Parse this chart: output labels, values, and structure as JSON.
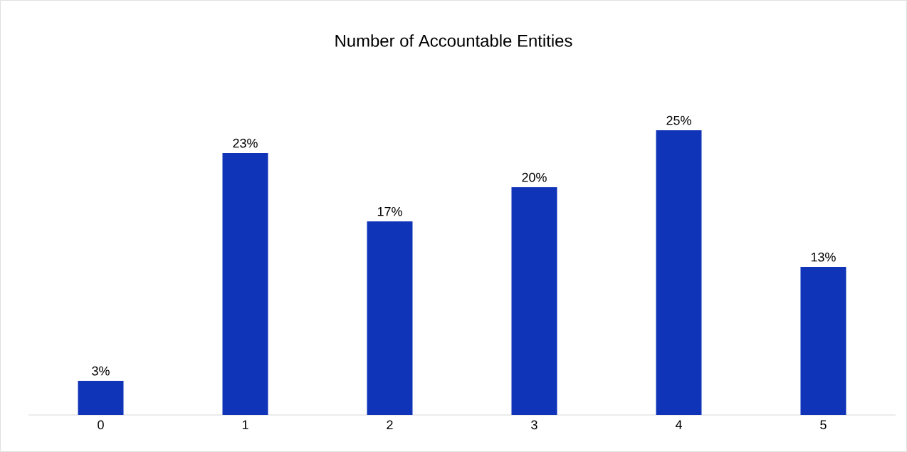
{
  "chart_data": {
    "type": "bar",
    "title": "Number of Accountable Entities",
    "categories": [
      "0",
      "1",
      "2",
      "3",
      "4",
      "5"
    ],
    "values": [
      3,
      23,
      17,
      20,
      25,
      13
    ],
    "value_labels": [
      "3%",
      "23%",
      "17%",
      "20%",
      "25%",
      "13%"
    ],
    "color": "#1034b8"
  }
}
